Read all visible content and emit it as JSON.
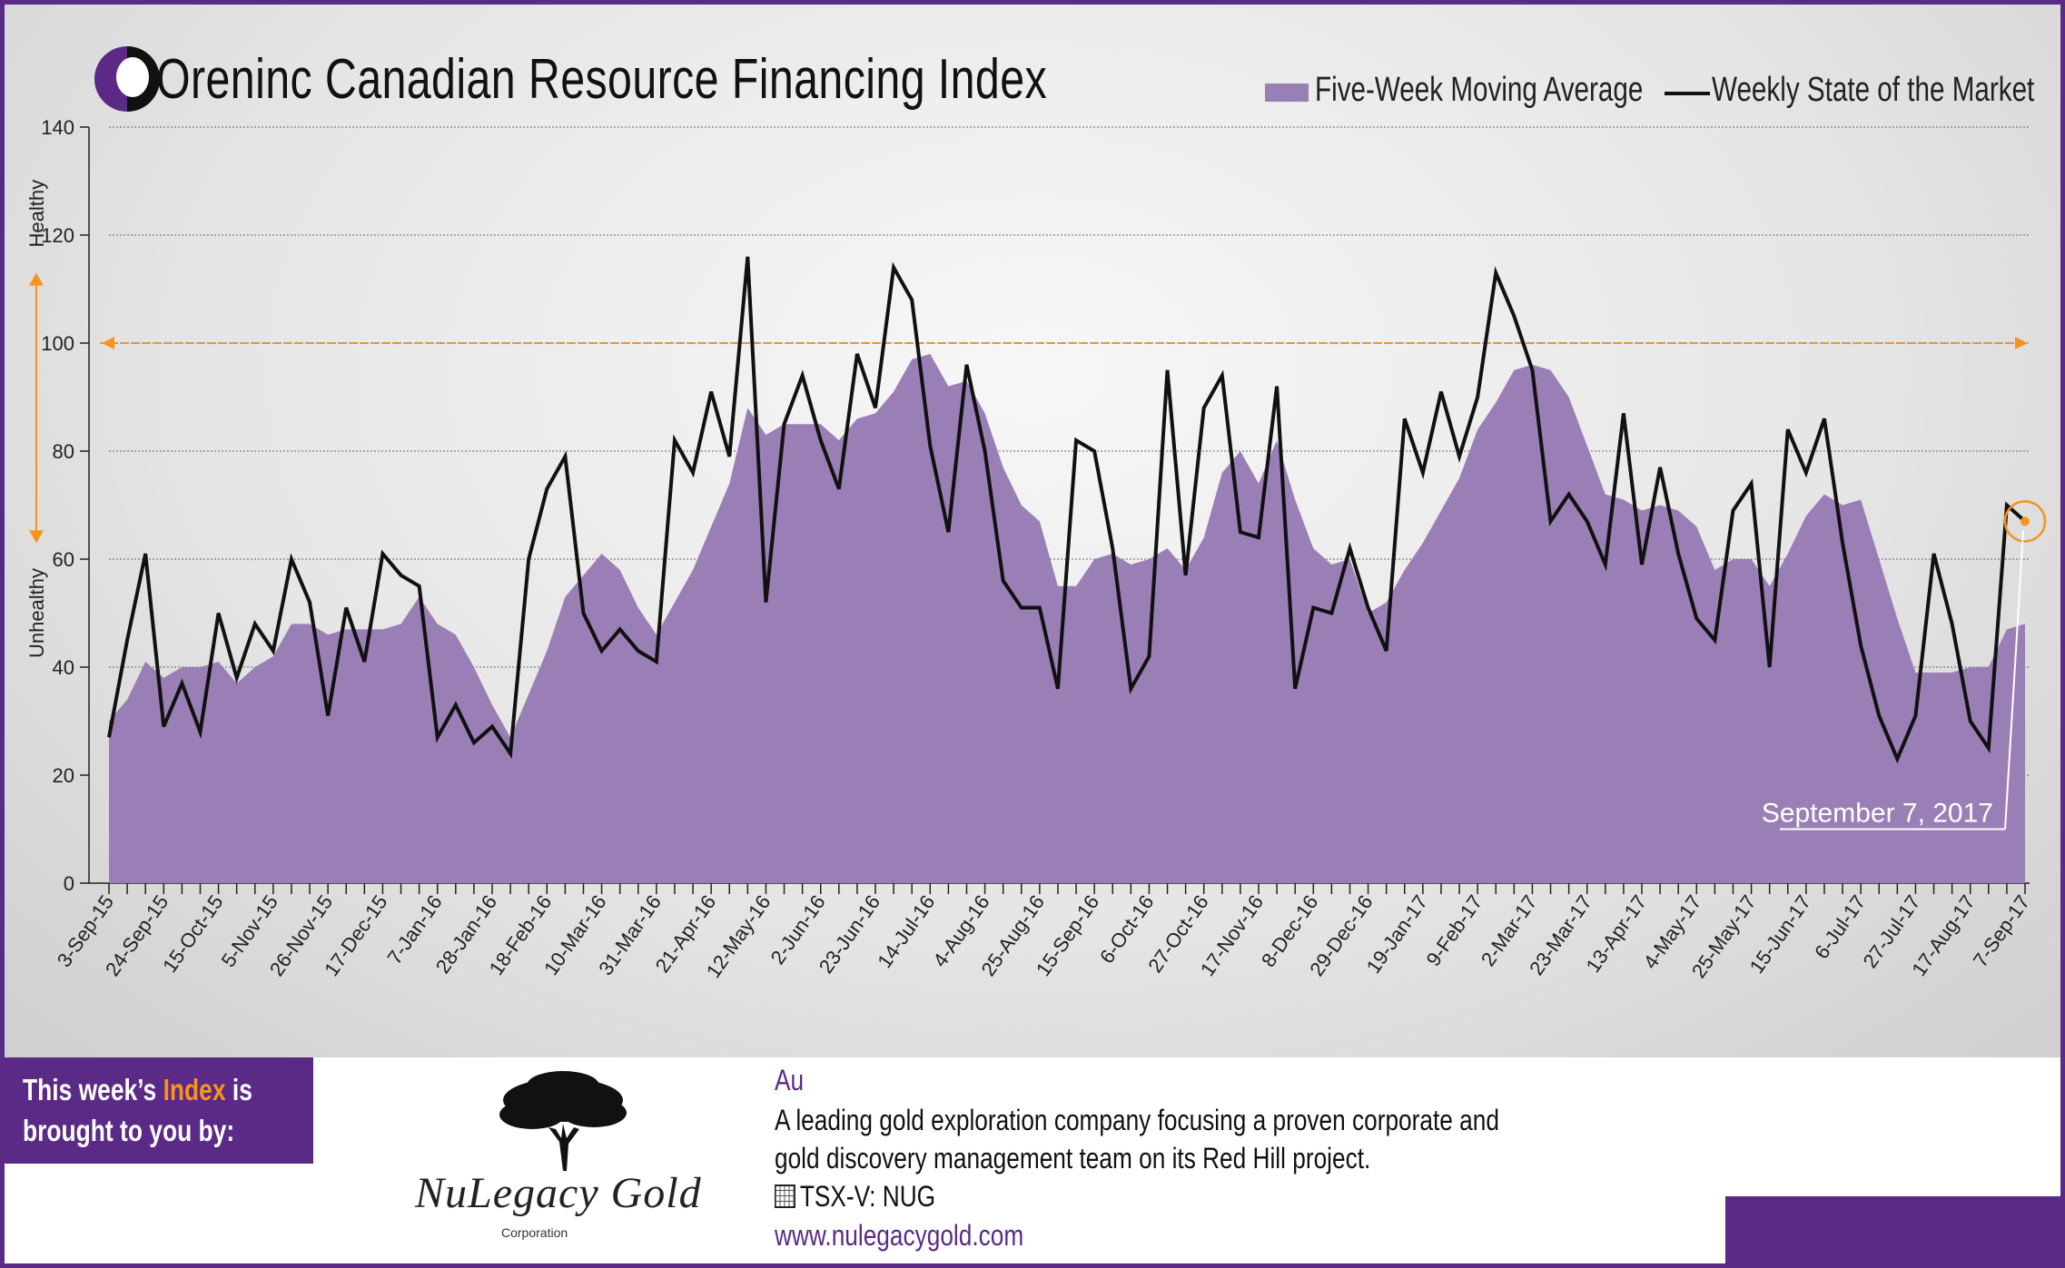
{
  "header": {
    "brand_name": "renInc",
    "title": "Oreninc Canadian Resource Financing Index"
  },
  "legend": {
    "moving_average_label": "Five-Week Moving Average",
    "weekly_label": "Weekly State of the Market"
  },
  "colors": {
    "area_fill": "#9a7fb6",
    "line": "#111111",
    "threshold": "#f7941d",
    "brand_purple": "#5b2a86"
  },
  "chart_data": {
    "type": "area",
    "title": "Oreninc Canadian Resource Financing Index",
    "y_axis": {
      "range": [
        0,
        140
      ],
      "ticks": [
        0,
        20,
        40,
        60,
        80,
        100,
        120,
        140
      ],
      "grid": true
    },
    "y_side_labels": {
      "top": "Healthy",
      "bottom": "Unhealthy"
    },
    "x_tick_labels": [
      "3-Sep-15",
      "24-Sep-15",
      "15-Oct-15",
      "5-Nov-15",
      "26-Nov-15",
      "17-Dec-15",
      "7-Jan-16",
      "28-Jan-16",
      "18-Feb-16",
      "10-Mar-16",
      "31-Mar-16",
      "21-Apr-16",
      "12-May-16",
      "2-Jun-16",
      "23-Jun-16",
      "14-Jul-16",
      "4-Aug-16",
      "25-Aug-16",
      "15-Sep-16",
      "6-Oct-16",
      "27-Oct-16",
      "17-Nov-16",
      "8-Dec-16",
      "29-Dec-16",
      "19-Jan-17",
      "9-Feb-17",
      "2-Mar-17",
      "23-Mar-17",
      "13-Apr-17",
      "4-May-17",
      "25-May-17",
      "15-Jun-17",
      "6-Jul-17",
      "27-Jul-17",
      "17-Aug-17",
      "7-Sep-17"
    ],
    "threshold": {
      "value": 100
    },
    "annotation": {
      "label": "September 7, 2017",
      "value": 67
    },
    "series": [
      {
        "name": "Weekly State of the Market",
        "kind": "line",
        "values": [
          27,
          45,
          61,
          29,
          37,
          28,
          50,
          38,
          48,
          43,
          60,
          52,
          31,
          51,
          41,
          61,
          57,
          55,
          27,
          33,
          26,
          29,
          24,
          60,
          73,
          79,
          50,
          43,
          47,
          43,
          41,
          82,
          76,
          91,
          79,
          116,
          52,
          85,
          94,
          82,
          73,
          98,
          88,
          114,
          108,
          81,
          65,
          96,
          80,
          56,
          51,
          51,
          36,
          82,
          80,
          62,
          36,
          42,
          95,
          57,
          88,
          94,
          65,
          64,
          92,
          36,
          51,
          50,
          62,
          51,
          43,
          86,
          76,
          91,
          79,
          90,
          113,
          105,
          95,
          67,
          72,
          67,
          59,
          87,
          59,
          77,
          61,
          49,
          45,
          69,
          74,
          40,
          84,
          76,
          86,
          63,
          44,
          31,
          23,
          31,
          61,
          48,
          30,
          25,
          70,
          67
        ]
      },
      {
        "name": "Five-Week Moving Average",
        "kind": "area",
        "values": [
          30,
          34,
          41,
          38,
          40,
          40,
          41,
          37,
          40,
          42,
          48,
          48,
          46,
          47,
          47,
          47,
          48,
          53,
          48,
          46,
          40,
          33,
          27,
          35,
          43,
          53,
          57,
          61,
          58,
          51,
          46,
          52,
          58,
          66,
          74,
          88,
          83,
          85,
          85,
          85,
          82,
          86,
          87,
          91,
          97,
          98,
          92,
          93,
          87,
          77,
          70,
          67,
          55,
          55,
          60,
          61,
          59,
          60,
          62,
          58,
          64,
          76,
          80,
          74,
          82,
          71,
          62,
          59,
          60,
          50,
          52,
          58,
          63,
          69,
          75,
          84,
          89,
          95,
          96,
          95,
          90,
          81,
          72,
          71,
          69,
          70,
          69,
          66,
          58,
          60,
          60,
          55,
          61,
          68,
          72,
          70,
          71,
          60,
          49,
          39,
          39,
          39,
          40,
          40,
          47,
          48
        ]
      }
    ]
  },
  "sponsor": {
    "line1_a": "This week’s ",
    "line1_highlight": "Index",
    "line1_b": " is",
    "line2": "brought to you by:",
    "company_name": "NuLegacy Gold",
    "company_sub": "Corporation",
    "metal": "Au",
    "desc1": "A leading gold exploration company focusing a proven corporate and",
    "desc2": "gold discovery management team on its Red Hill project.",
    "ticker": "TSX-V:  NUG",
    "url": "www.nulegacygold.com"
  }
}
